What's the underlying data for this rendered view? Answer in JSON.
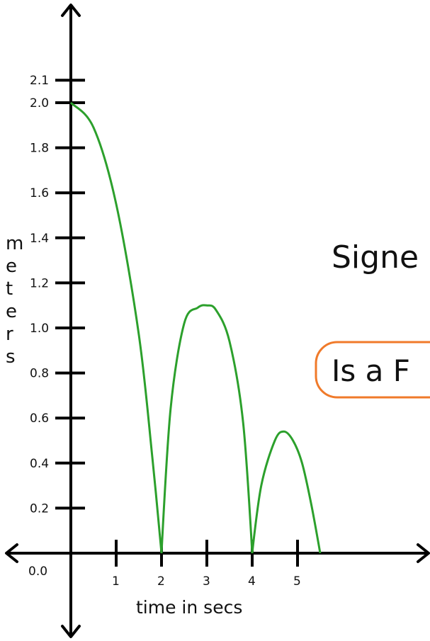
{
  "chart_data": {
    "type": "line",
    "xlabel": "time in secs",
    "ylabel": "meters",
    "origin_label": "0.0",
    "x_ticks": [
      "1",
      "2",
      "3",
      "4",
      "5"
    ],
    "y_ticks": [
      "0.2",
      "0.4",
      "0.6",
      "0.8",
      "1.0",
      "1.2",
      "1.4",
      "1.6",
      "1.8",
      "2.0",
      "2.1"
    ],
    "xlim": [
      0,
      5.5
    ],
    "ylim": [
      0,
      2.1
    ],
    "grid": false,
    "series": [
      {
        "color": "#2ca02c",
        "x": [
          0,
          0.5,
          1.0,
          1.5,
          1.8,
          2.0,
          2.2,
          2.5,
          2.8,
          3.0,
          3.2,
          3.5,
          3.8,
          4.0,
          4.2,
          4.5,
          4.7,
          4.9,
          5.1,
          5.3,
          5.5
        ],
        "y": [
          2.0,
          1.89,
          1.55,
          0.97,
          0.42,
          0.0,
          0.64,
          1.02,
          1.09,
          1.1,
          1.08,
          0.94,
          0.58,
          0.0,
          0.3,
          0.5,
          0.54,
          0.5,
          0.4,
          0.22,
          0.0
        ]
      }
    ]
  },
  "side_text": "Signe",
  "box_text": "Is a F",
  "colors": {
    "axis": "#000000",
    "curve": "#2ca02c",
    "box_border": "#f07a2a"
  }
}
